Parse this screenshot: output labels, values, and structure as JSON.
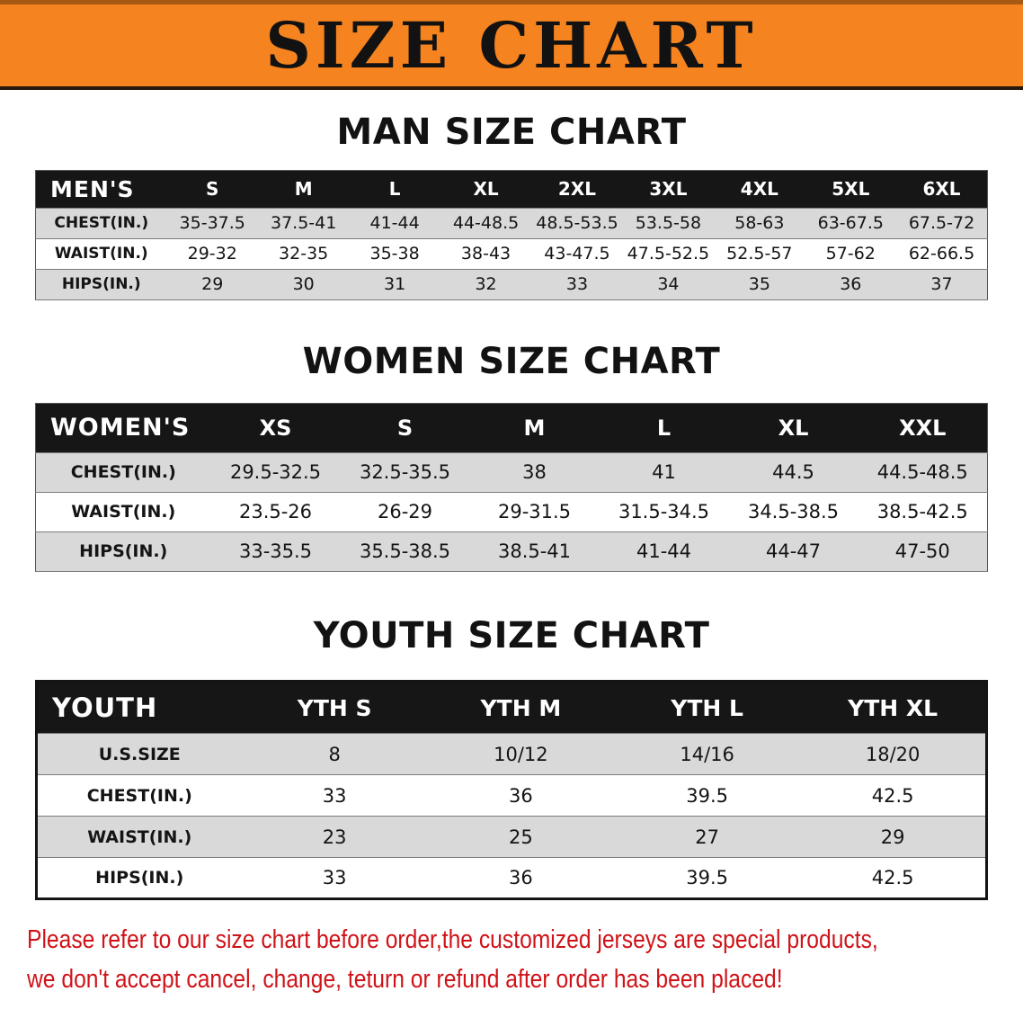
{
  "banner": {
    "title": "SIZE CHART"
  },
  "colors": {
    "banner_bg": "#f5831f",
    "table_header_bg": "#161616",
    "table_header_text": "#ffffff",
    "row_shade": "#d9d9d9",
    "notice_text": "#cf1318"
  },
  "sections": [
    {
      "id": "men",
      "heading": "MAN SIZE CHART",
      "table": {
        "corner_label": "MEN'S",
        "columns": [
          "S",
          "M",
          "L",
          "XL",
          "2XL",
          "3XL",
          "4XL",
          "5XL",
          "6XL"
        ],
        "rows": [
          {
            "label": "CHEST(IN.)",
            "values": [
              "35-37.5",
              "37.5-41",
              "41-44",
              "44-48.5",
              "48.5-53.5",
              "53.5-58",
              "58-63",
              "63-67.5",
              "67.5-72"
            ]
          },
          {
            "label": "WAIST(IN.)",
            "values": [
              "29-32",
              "32-35",
              "35-38",
              "38-43",
              "43-47.5",
              "47.5-52.5",
              "52.5-57",
              "57-62",
              "62-66.5"
            ]
          },
          {
            "label": "HIPS(IN.)",
            "values": [
              "29",
              "30",
              "31",
              "32",
              "33",
              "34",
              "35",
              "36",
              "37"
            ]
          }
        ]
      }
    },
    {
      "id": "women",
      "heading": "WOMEN SIZE CHART",
      "table": {
        "corner_label": "WOMEN'S",
        "columns": [
          "XS",
          "S",
          "M",
          "L",
          "XL",
          "XXL"
        ],
        "rows": [
          {
            "label": "CHEST(IN.)",
            "values": [
              "29.5-32.5",
              "32.5-35.5",
              "38",
              "41",
              "44.5",
              "44.5-48.5"
            ]
          },
          {
            "label": "WAIST(IN.)",
            "values": [
              "23.5-26",
              "26-29",
              "29-31.5",
              "31.5-34.5",
              "34.5-38.5",
              "38.5-42.5"
            ]
          },
          {
            "label": "HIPS(IN.)",
            "values": [
              "33-35.5",
              "35.5-38.5",
              "38.5-41",
              "41-44",
              "44-47",
              "47-50"
            ]
          }
        ]
      }
    },
    {
      "id": "youth",
      "heading": "YOUTH SIZE CHART",
      "table": {
        "corner_label": "YOUTH",
        "columns": [
          "YTH S",
          "YTH M",
          "YTH L",
          "YTH XL"
        ],
        "rows": [
          {
            "label": "U.S.SIZE",
            "values": [
              "8",
              "10/12",
              "14/16",
              "18/20"
            ]
          },
          {
            "label": "CHEST(IN.)",
            "values": [
              "33",
              "36",
              "39.5",
              "42.5"
            ]
          },
          {
            "label": "WAIST(IN.)",
            "values": [
              "23",
              "25",
              "27",
              "29"
            ]
          },
          {
            "label": "HIPS(IN.)",
            "values": [
              "33",
              "36",
              "39.5",
              "42.5"
            ]
          }
        ]
      }
    }
  ],
  "footer": {
    "lines": [
      "Please refer to our size chart before order,the customized jerseys are special products,",
      "we don't accept cancel, change, teturn or refund after order has been placed!"
    ]
  }
}
